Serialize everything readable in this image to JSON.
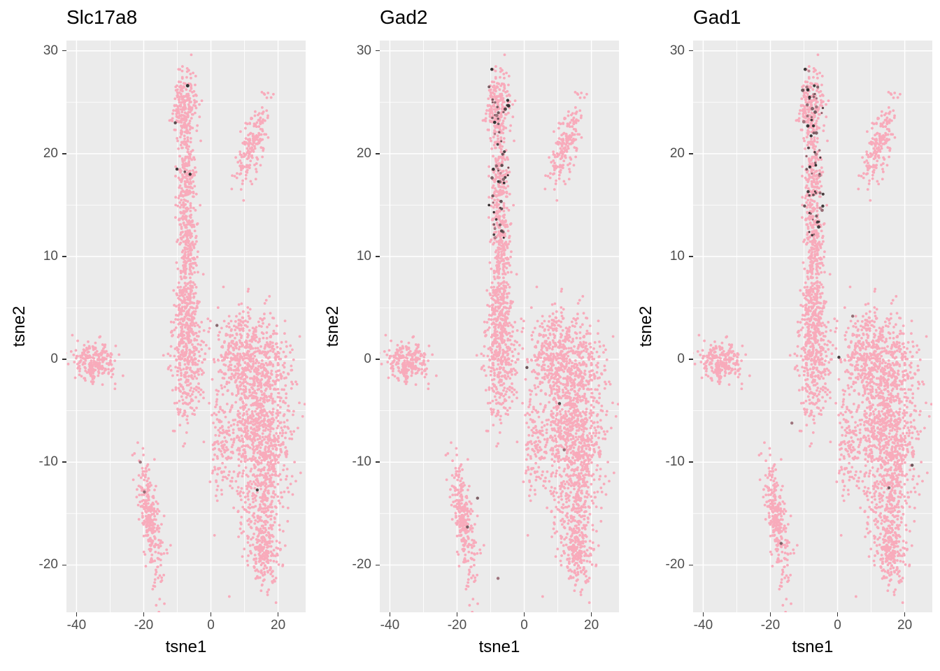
{
  "chart_data": {
    "type": "scatter",
    "xlabel": "tsne1",
    "ylabel": "tsne2",
    "x_ticks": [
      -40,
      -20,
      0,
      20
    ],
    "y_ticks": [
      -20,
      -10,
      0,
      10,
      20,
      30
    ],
    "x_minor": [
      -30,
      -10,
      10
    ],
    "y_minor": [
      -15,
      -5,
      5,
      15,
      25
    ],
    "xlim": [
      -43,
      28.2
    ],
    "ylim": [
      -24.6,
      31
    ],
    "legend": "none",
    "grid": "on",
    "seed": 42,
    "panels": [
      {
        "title": "Slc17a8",
        "dark": {
          "stalk_n": 2,
          "seed": 7,
          "extras": [
            [
              -10.1,
              18.5,
              0.1
            ],
            [
              -6.2,
              18.0,
              0.05
            ],
            [
              -10.6,
              23.0,
              0.2
            ],
            [
              1.8,
              3.3,
              0.45
            ],
            [
              13.8,
              -12.7,
              0.15
            ],
            [
              -21.0,
              -10.0,
              0.55
            ],
            [
              -19.8,
              -12.9,
              0.5
            ]
          ]
        }
      },
      {
        "title": "Gad2",
        "dark": {
          "stalk_n": 58,
          "seed": 11,
          "extras": [
            [
              0.8,
              -0.8,
              0.3
            ],
            [
              10.5,
              -4.3,
              0.2
            ],
            [
              -13.9,
              -13.5,
              0.4
            ],
            [
              -16.9,
              -16.3,
              0.35
            ],
            [
              11.9,
              -8.8,
              0.5
            ],
            [
              -7.8,
              -21.3,
              0.55
            ]
          ]
        }
      },
      {
        "title": "Gad1",
        "dark": {
          "stalk_n": 66,
          "seed": 23,
          "extras": [
            [
              -4.4,
              14.9,
              0.08
            ],
            [
              0.4,
              0.2,
              0.12
            ],
            [
              22.2,
              -10.3,
              0.3
            ],
            [
              -16.8,
              -17.9,
              0.4
            ],
            [
              15.3,
              -12.5,
              0.35
            ],
            [
              4.5,
              4.2,
              0.5
            ],
            [
              -13.6,
              -6.2,
              0.55
            ]
          ]
        }
      }
    ],
    "clusters": [
      {
        "name": "stalk-top",
        "cx": -8,
        "cy": 25,
        "sx": 1.9,
        "sy": 1.6,
        "angle": 0,
        "n": 200
      },
      {
        "name": "stalk-upper",
        "cx": -7.5,
        "cy": 18,
        "sx": 1.4,
        "sy": 2.6,
        "angle": 0,
        "n": 230
      },
      {
        "name": "stalk-lower",
        "cx": -7,
        "cy": 11,
        "sx": 1.4,
        "sy": 2.4,
        "angle": 0,
        "n": 200
      },
      {
        "name": "stalk-base",
        "cx": -7,
        "cy": 5.5,
        "sx": 1.8,
        "sy": 1.8,
        "angle": 0,
        "n": 150
      },
      {
        "name": "mid-blob",
        "cx": -7,
        "cy": 1,
        "sx": 2.4,
        "sy": 2.2,
        "angle": 0,
        "n": 300
      },
      {
        "name": "mid-low-sparse",
        "cx": -7,
        "cy": -4.5,
        "sx": 2.2,
        "sy": 1.6,
        "angle": 0,
        "n": 70
      },
      {
        "name": "upper-right",
        "cx": 12.5,
        "cy": 21,
        "sx": 2.8,
        "sy": 1.3,
        "angle": 36,
        "n": 190
      },
      {
        "name": "left-blob",
        "cx": -35,
        "cy": -0.2,
        "sx": 3.0,
        "sy": 0.95,
        "angle": 0,
        "n": 230
      },
      {
        "name": "right-mass-1",
        "cx": 8.5,
        "cy": 0.5,
        "sx": 3.5,
        "sy": 2.2,
        "angle": 0,
        "n": 330
      },
      {
        "name": "right-mass-2",
        "cx": 16,
        "cy": -1,
        "sx": 4.2,
        "sy": 2.5,
        "angle": 0,
        "n": 330
      },
      {
        "name": "right-mass-3",
        "cx": 12,
        "cy": -7,
        "sx": 4.5,
        "sy": 2.5,
        "angle": 0,
        "n": 380
      },
      {
        "name": "right-mass-4",
        "cx": 17.5,
        "cy": -9,
        "sx": 3.5,
        "sy": 2.5,
        "angle": 0,
        "n": 280
      },
      {
        "name": "right-mass-5",
        "cx": 14.5,
        "cy": -15,
        "sx": 3.0,
        "sy": 2.5,
        "angle": 0,
        "n": 260
      },
      {
        "name": "right-tail",
        "cx": 16.5,
        "cy": -19.5,
        "sx": 2.2,
        "sy": 1.6,
        "angle": 0,
        "n": 140
      },
      {
        "name": "right-left-edge",
        "cx": 2.5,
        "cy": -8.5,
        "sx": 1.2,
        "sy": 2.6,
        "angle": 0,
        "n": 90
      },
      {
        "name": "bottom-left",
        "cx": -18,
        "cy": -15.5,
        "sx": 3.4,
        "sy": 1.3,
        "angle": -65,
        "n": 280
      }
    ]
  },
  "style": {
    "background": "#FFFFFF",
    "panel_background": "#EBEBEB",
    "grid_color": "#FFFFFF",
    "point_color": "#F8ABBB",
    "dark_point_color": "#2F2F2F",
    "tick_label_color": "#4D4D4D",
    "axis_title_color": "#000000",
    "plot_title_color": "#000000",
    "tick_mark_color": "#333333"
  }
}
